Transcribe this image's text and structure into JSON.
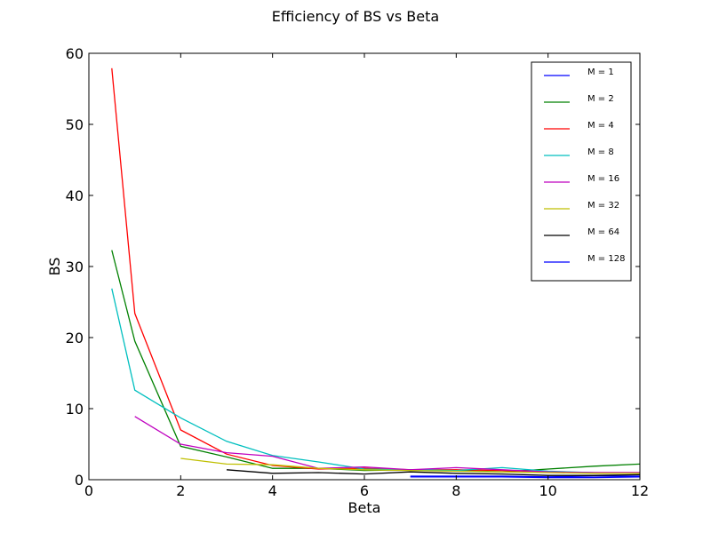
{
  "chart_data": {
    "type": "line",
    "title": "Efficiency of BS vs Beta",
    "xlabel": "Beta",
    "ylabel": "BS",
    "xlim": [
      0,
      12
    ],
    "ylim": [
      0,
      60
    ],
    "xticks": [
      0,
      2,
      4,
      6,
      8,
      10,
      12
    ],
    "yticks": [
      0,
      10,
      20,
      30,
      40,
      50,
      60
    ],
    "grid": false,
    "legend_position": "top-right",
    "series": [
      {
        "name": "M = 1",
        "color": "#0000ff",
        "x": [
          7,
          8,
          9,
          10,
          11,
          12
        ],
        "y": [
          0.5,
          0.5,
          0.5,
          0.4,
          0.5,
          0.5
        ]
      },
      {
        "name": "M = 2",
        "color": "#008000",
        "x": [
          0.5,
          1,
          2,
          3,
          4,
          5,
          6,
          7,
          8,
          9,
          10,
          11,
          12
        ],
        "y": [
          32.3,
          19.5,
          4.7,
          3.2,
          1.6,
          1.6,
          1.3,
          1.4,
          1.3,
          1.1,
          1.5,
          1.9,
          2.2
        ]
      },
      {
        "name": "M = 4",
        "color": "#ff0000",
        "x": [
          0.5,
          1,
          2,
          3,
          4,
          5,
          6,
          7,
          8,
          9,
          10,
          11,
          12
        ],
        "y": [
          57.9,
          23.4,
          7.0,
          3.6,
          2.0,
          1.5,
          1.6,
          1.4,
          1.4,
          1.3,
          1.1,
          1.0,
          1.0
        ]
      },
      {
        "name": "M = 8",
        "color": "#00bfbf",
        "x": [
          0.5,
          1,
          2,
          3,
          4,
          5,
          6,
          7,
          8,
          9,
          10,
          11,
          12
        ],
        "y": [
          26.9,
          12.6,
          8.7,
          5.4,
          3.4,
          2.5,
          1.5,
          1.4,
          1.3,
          1.7,
          1.2,
          1.0,
          0.9
        ]
      },
      {
        "name": "M = 16",
        "color": "#bf00bf",
        "x": [
          1,
          2,
          3,
          4,
          5,
          6,
          7,
          8,
          9,
          10,
          11,
          12
        ],
        "y": [
          8.9,
          5.0,
          3.8,
          3.3,
          1.6,
          1.8,
          1.4,
          1.7,
          1.4,
          1.1,
          1.0,
          1.0
        ]
      },
      {
        "name": "M = 32",
        "color": "#bfbf00",
        "x": [
          2,
          3,
          4,
          5,
          6,
          7,
          8,
          9,
          10,
          11,
          12
        ],
        "y": [
          3.0,
          2.2,
          2.1,
          1.6,
          1.4,
          1.3,
          1.2,
          1.1,
          1.0,
          0.9,
          0.9
        ]
      },
      {
        "name": "M = 64",
        "color": "#000000",
        "x": [
          3,
          4,
          5,
          6,
          7,
          8,
          9,
          10,
          11,
          12
        ],
        "y": [
          1.4,
          0.9,
          1.0,
          0.8,
          1.1,
          0.9,
          0.8,
          0.6,
          0.6,
          0.7
        ]
      },
      {
        "name": "M = 128",
        "color": "#0000ff",
        "x": [
          7,
          8,
          9,
          10,
          11,
          12
        ],
        "y": [
          0.4,
          0.4,
          0.4,
          0.3,
          0.3,
          0.4
        ]
      }
    ]
  }
}
